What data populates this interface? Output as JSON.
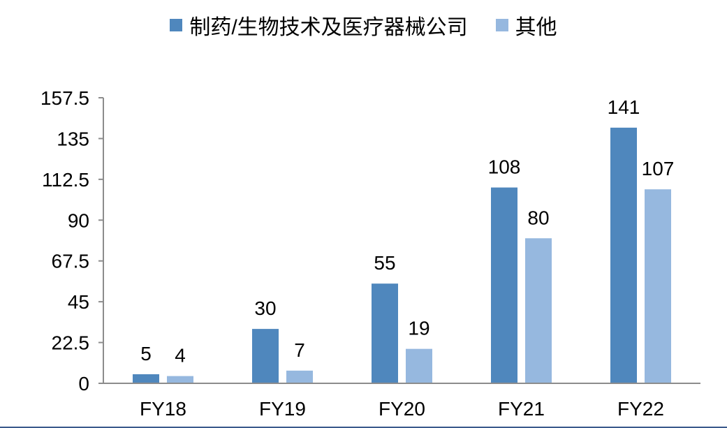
{
  "chart_data": {
    "type": "bar",
    "categories": [
      "FY18",
      "FY19",
      "FY20",
      "FY21",
      "FY22"
    ],
    "series": [
      {
        "name": "制药/生物技术及医疗器械公司",
        "values": [
          5,
          30,
          55,
          108,
          141
        ],
        "color": "#4f87bd"
      },
      {
        "name": "其他",
        "values": [
          4,
          7,
          19,
          80,
          107
        ],
        "color": "#96b8df"
      }
    ],
    "yticks": [
      "0",
      "22.5",
      "45",
      "67.5",
      "90",
      "112.5",
      "135",
      "157.5"
    ],
    "ylim": [
      0,
      157.5
    ],
    "title": "",
    "xlabel": "",
    "ylabel": "",
    "grid": false,
    "legend_position": "top"
  }
}
